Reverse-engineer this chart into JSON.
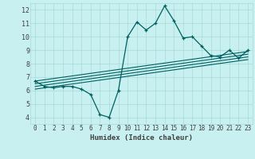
{
  "xlabel": "Humidex (Indice chaleur)",
  "bg_color": "#c8f0f0",
  "line_color": "#006060",
  "grid_color": "#a8dada",
  "xlim": [
    -0.5,
    23.5
  ],
  "ylim": [
    3.5,
    12.5
  ],
  "xticks": [
    0,
    1,
    2,
    3,
    4,
    5,
    6,
    7,
    8,
    9,
    10,
    11,
    12,
    13,
    14,
    15,
    16,
    17,
    18,
    19,
    20,
    21,
    22,
    23
  ],
  "yticks": [
    4,
    5,
    6,
    7,
    8,
    9,
    10,
    11,
    12
  ],
  "x": [
    0,
    1,
    2,
    3,
    4,
    5,
    6,
    7,
    8,
    9,
    10,
    11,
    12,
    13,
    14,
    15,
    16,
    17,
    18,
    19,
    20,
    21,
    22,
    23
  ],
  "y": [
    6.7,
    6.3,
    6.2,
    6.3,
    6.3,
    6.1,
    5.7,
    4.2,
    4.0,
    6.0,
    10.0,
    11.1,
    10.5,
    11.0,
    12.3,
    11.2,
    9.9,
    10.0,
    9.3,
    8.6,
    8.5,
    9.0,
    8.4,
    9.0
  ],
  "reg_lines": [
    {
      "x0": 0,
      "y0": 6.1,
      "x1": 23,
      "y1": 8.3
    },
    {
      "x0": 0,
      "y0": 6.3,
      "x1": 23,
      "y1": 8.5
    },
    {
      "x0": 0,
      "y0": 6.5,
      "x1": 23,
      "y1": 8.7
    },
    {
      "x0": 0,
      "y0": 6.7,
      "x1": 23,
      "y1": 8.9
    }
  ],
  "tick_color": "#404040",
  "tick_fontsize": 5.5,
  "xlabel_fontsize": 6.5,
  "linewidth": 0.9,
  "marker_size": 3.5
}
